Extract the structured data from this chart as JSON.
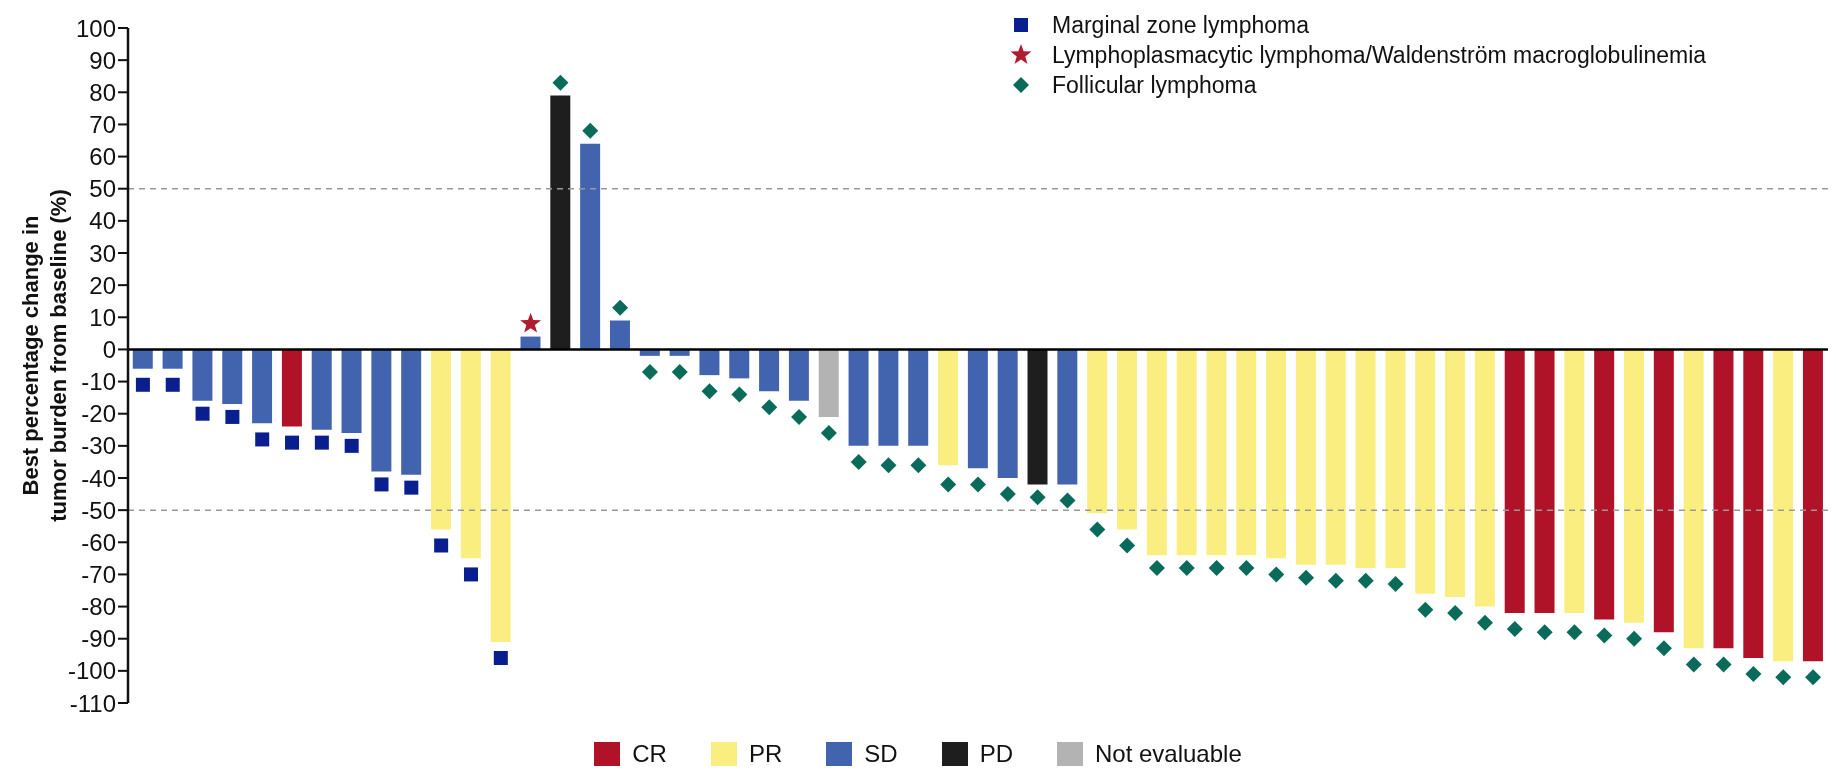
{
  "chart_data": {
    "type": "bar",
    "stacked": true,
    "ylabel": "Best percentage change in\ntumor burden from baseline (%)",
    "categories": [
      null,
      null,
      null,
      null,
      null,
      null,
      null,
      null,
      null,
      null,
      null,
      null,
      null,
      null,
      null,
      null,
      null,
      null,
      null,
      null,
      null,
      null,
      null,
      null,
      null,
      null,
      null,
      null,
      null,
      null,
      null,
      null,
      null,
      null,
      null,
      null,
      null,
      null,
      null,
      null,
      null,
      null,
      null,
      null,
      null,
      null,
      null,
      null,
      null,
      null,
      null,
      null,
      null,
      null,
      null,
      null,
      null
    ],
    "series": [
      {
        "name": "CR",
        "color": "#b01228",
        "values": [
          null,
          null,
          null,
          null,
          null,
          -24,
          null,
          null,
          null,
          null,
          null,
          null,
          null,
          null,
          null,
          null,
          null,
          null,
          null,
          null,
          null,
          null,
          null,
          null,
          null,
          null,
          null,
          null,
          null,
          null,
          null,
          null,
          null,
          null,
          null,
          null,
          null,
          null,
          null,
          null,
          null,
          null,
          null,
          null,
          null,
          null,
          -82,
          -82,
          null,
          -84,
          null,
          -88,
          null,
          -93,
          -96,
          null,
          -97
        ]
      },
      {
        "name": "PR",
        "color": "#fbee80",
        "values": [
          null,
          null,
          null,
          null,
          null,
          null,
          null,
          null,
          null,
          null,
          -56,
          -65,
          -91,
          null,
          null,
          null,
          null,
          null,
          null,
          null,
          null,
          null,
          null,
          null,
          null,
          null,
          null,
          -36,
          null,
          null,
          null,
          null,
          -51,
          -56,
          -64,
          -64,
          -64,
          -64,
          -65,
          -67,
          -67,
          -68,
          -68,
          -76,
          -77,
          -80,
          null,
          null,
          -82,
          null,
          -85,
          null,
          -93,
          null,
          null,
          -97,
          null
        ]
      },
      {
        "name": "SD",
        "color": "#4263ae",
        "values": [
          -6,
          -6,
          -16,
          -17,
          -23,
          null,
          -25,
          -26,
          -38,
          -39,
          null,
          null,
          null,
          4,
          null,
          64,
          9,
          -2,
          -2,
          -8,
          -9,
          -13,
          -16,
          null,
          -30,
          -30,
          -30,
          null,
          -37,
          -40,
          null,
          -42,
          null,
          null,
          null,
          null,
          null,
          null,
          null,
          null,
          null,
          null,
          null,
          null,
          null,
          null,
          null,
          null,
          null,
          null,
          null,
          null,
          null,
          null,
          null,
          null,
          null
        ]
      },
      {
        "name": "PD",
        "color": "#1e1e1e",
        "values": [
          null,
          null,
          null,
          null,
          null,
          null,
          null,
          null,
          null,
          null,
          null,
          null,
          null,
          null,
          79,
          null,
          null,
          null,
          null,
          null,
          null,
          null,
          null,
          null,
          null,
          null,
          null,
          null,
          null,
          null,
          -42,
          null,
          null,
          null,
          null,
          null,
          null,
          null,
          null,
          null,
          null,
          null,
          null,
          null,
          null,
          null,
          null,
          null,
          null,
          null,
          null,
          null,
          null,
          null,
          null,
          null,
          null
        ]
      },
      {
        "name": "Not evaluable",
        "color": "#b3b3b3",
        "values": [
          null,
          null,
          null,
          null,
          null,
          null,
          null,
          null,
          null,
          null,
          null,
          null,
          null,
          null,
          null,
          null,
          null,
          null,
          null,
          null,
          null,
          null,
          null,
          -21,
          null,
          null,
          null,
          null,
          null,
          null,
          null,
          null,
          null,
          null,
          null,
          null,
          null,
          null,
          null,
          null,
          null,
          null,
          null,
          null,
          null,
          null,
          null,
          null,
          null,
          null,
          null,
          null,
          null,
          null,
          null,
          null,
          null
        ]
      },
      {
        "name": "Marginal zone lymphoma",
        "type": "scatter",
        "marker": "square",
        "color": "#0a1f8f",
        "values": [
          -11,
          -11,
          -20,
          -21,
          -28,
          -29,
          -29,
          -30,
          -42,
          -43,
          -61,
          -70,
          -96,
          null,
          null,
          null,
          null,
          null,
          null,
          null,
          null,
          null,
          null,
          null,
          null,
          null,
          null,
          null,
          null,
          null,
          null,
          null,
          null,
          null,
          null,
          null,
          null,
          null,
          null,
          null,
          null,
          null,
          null,
          null,
          null,
          null,
          null,
          null,
          null,
          null,
          null,
          null,
          null,
          null,
          null,
          null,
          null
        ]
      },
      {
        "name": "Lymphoplasmacytic lymphoma/Waldenström macroglobulinemia",
        "type": "scatter",
        "marker": "star",
        "color": "#b01c2e",
        "values": [
          null,
          null,
          null,
          null,
          null,
          null,
          null,
          null,
          null,
          null,
          null,
          null,
          null,
          8,
          null,
          null,
          null,
          null,
          null,
          null,
          null,
          null,
          null,
          null,
          null,
          null,
          null,
          null,
          null,
          null,
          null,
          null,
          null,
          null,
          null,
          null,
          null,
          null,
          null,
          null,
          null,
          null,
          null,
          null,
          null,
          null,
          null,
          null,
          null,
          null,
          null,
          null,
          null,
          null,
          null,
          null,
          null
        ]
      },
      {
        "name": "Follicular lymphoma",
        "type": "scatter",
        "marker": "diamond",
        "color": "#0b6b5a",
        "values": [
          null,
          null,
          null,
          null,
          null,
          null,
          null,
          null,
          null,
          null,
          null,
          null,
          null,
          null,
          83,
          68,
          13,
          -7,
          -7,
          -13,
          -14,
          -18,
          -21,
          -26,
          -35,
          -36,
          -36,
          -42,
          -42,
          -45,
          -46,
          -47,
          -56,
          -61,
          -68,
          -68,
          -68,
          -68,
          -70,
          -71,
          -72,
          -72,
          -73,
          -81,
          -82,
          -85,
          -87,
          -88,
          -88,
          -89,
          -90,
          -93,
          -98,
          -98,
          -101,
          -102,
          -102
        ]
      }
    ],
    "ylim": [
      -110,
      100
    ],
    "yticks": [
      -110,
      -100,
      -90,
      -80,
      -70,
      -60,
      -50,
      -40,
      -30,
      -20,
      -10,
      0,
      10,
      20,
      30,
      40,
      50,
      60,
      70,
      80,
      90,
      100
    ],
    "ref_lines": [
      {
        "axis": "y",
        "value": 50,
        "line_style": "dashed",
        "color": "#999999"
      },
      {
        "axis": "y",
        "value": -50,
        "line_style": "dashed",
        "color": "#999999"
      }
    ],
    "tick_labels": "y",
    "legend": "bottom"
  }
}
